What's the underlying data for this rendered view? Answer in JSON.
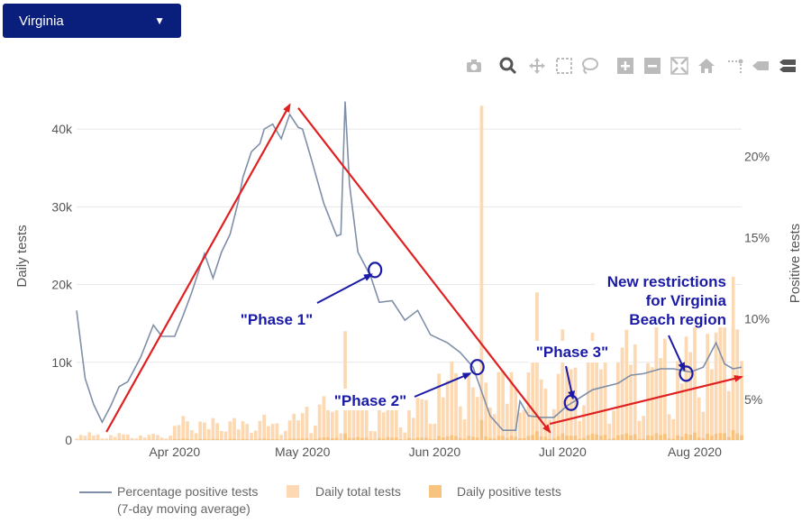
{
  "dropdown": {
    "selected": "Virginia",
    "caret": "▼"
  },
  "modebar": [
    "camera-icon",
    "zoom-icon",
    "pan-icon",
    "box-select-icon",
    "lasso-select-icon",
    "zoom-in-icon",
    "zoom-out-icon",
    "autoscale-icon",
    "reset-axes-icon",
    "spike-lines-icon",
    "hover-closest-icon",
    "hover-compare-icon"
  ],
  "legend": {
    "line_label_1": "Percentage positive tests",
    "line_label_2": "(7-day moving average)",
    "total_label": "Daily total tests",
    "positive_label": "Daily positive tests"
  },
  "colors": {
    "line": "#7f8fa8",
    "total_bar": "#fcd9b3",
    "positive_bar": "#f8c27f",
    "arrow": "#e02020",
    "annotation": "#1a1aa6"
  },
  "chart_data": {
    "type": "bar+line",
    "x_start": "2020-03-09",
    "x_end": "2020-08-12",
    "x_ticks": [
      {
        "date": "2020-04-01",
        "label": "Apr 2020"
      },
      {
        "date": "2020-05-01",
        "label": "May 2020"
      },
      {
        "date": "2020-06-01",
        "label": "Jun 2020"
      },
      {
        "date": "2020-07-01",
        "label": "Jul 2020"
      },
      {
        "date": "2020-08-01",
        "label": "Aug 2020"
      }
    ],
    "y_left": {
      "title": "Daily tests",
      "range": [
        0,
        45000
      ],
      "ticks": [
        0,
        10000,
        20000,
        30000,
        40000
      ],
      "tick_labels": [
        "0",
        "10k",
        "20k",
        "30k",
        "40k"
      ]
    },
    "y_right": {
      "title": "Positive tests",
      "range": [
        2.5,
        24.1
      ],
      "ticks": [
        5,
        10,
        15,
        20
      ],
      "tick_labels": [
        "5%",
        "10%",
        "15%",
        "20%"
      ]
    },
    "gridlines": "horizontal",
    "series": [
      {
        "name": "Percentage positive tests (7-day moving average)",
        "kind": "line",
        "axis": "right",
        "points": [
          [
            "2020-03-09",
            10.5
          ],
          [
            "2020-03-11",
            6.3
          ],
          [
            "2020-03-13",
            4.7
          ],
          [
            "2020-03-15",
            3.6
          ],
          [
            "2020-03-17",
            4.6
          ],
          [
            "2020-03-19",
            5.8
          ],
          [
            "2020-03-21",
            6.1
          ],
          [
            "2020-03-24",
            7.6
          ],
          [
            "2020-03-27",
            9.6
          ],
          [
            "2020-03-29",
            8.9
          ],
          [
            "2020-04-01",
            8.9
          ],
          [
            "2020-04-03",
            10.2
          ],
          [
            "2020-04-05",
            11.6
          ],
          [
            "2020-04-08",
            14.0
          ],
          [
            "2020-04-10",
            12.5
          ],
          [
            "2020-04-12",
            14.1
          ],
          [
            "2020-04-14",
            15.2
          ],
          [
            "2020-04-16",
            17.3
          ],
          [
            "2020-04-17",
            18.7
          ],
          [
            "2020-04-19",
            20.3
          ],
          [
            "2020-04-21",
            20.8
          ],
          [
            "2020-04-22",
            21.7
          ],
          [
            "2020-04-24",
            22.0
          ],
          [
            "2020-04-26",
            21.1
          ],
          [
            "2020-04-28",
            22.6
          ],
          [
            "2020-04-30",
            21.8
          ],
          [
            "2020-05-01",
            21.7
          ],
          [
            "2020-05-03",
            19.9
          ],
          [
            "2020-05-06",
            17.1
          ],
          [
            "2020-05-09",
            15.1
          ],
          [
            "2020-05-10",
            15.2
          ],
          [
            "2020-05-11",
            23.4
          ],
          [
            "2020-05-12",
            18.3
          ],
          [
            "2020-05-14",
            14.1
          ],
          [
            "2020-05-17",
            12.6
          ],
          [
            "2020-05-19",
            11.0
          ],
          [
            "2020-05-22",
            11.1
          ],
          [
            "2020-05-25",
            9.9
          ],
          [
            "2020-05-28",
            10.5
          ],
          [
            "2020-05-31",
            9.0
          ],
          [
            "2020-06-04",
            8.5
          ],
          [
            "2020-06-07",
            7.9
          ],
          [
            "2020-06-10",
            7.0
          ],
          [
            "2020-06-12",
            5.5
          ],
          [
            "2020-06-14",
            4.0
          ],
          [
            "2020-06-17",
            3.1
          ],
          [
            "2020-06-20",
            3.1
          ],
          [
            "2020-06-21",
            4.9
          ],
          [
            "2020-06-23",
            4.0
          ],
          [
            "2020-06-26",
            3.9
          ],
          [
            "2020-06-29",
            3.9
          ],
          [
            "2020-07-02",
            4.6
          ],
          [
            "2020-07-05",
            5.1
          ],
          [
            "2020-07-08",
            5.6
          ],
          [
            "2020-07-11",
            5.8
          ],
          [
            "2020-07-14",
            6.0
          ],
          [
            "2020-07-17",
            6.5
          ],
          [
            "2020-07-20",
            6.6
          ],
          [
            "2020-07-24",
            6.9
          ],
          [
            "2020-07-27",
            6.9
          ],
          [
            "2020-07-31",
            6.7
          ],
          [
            "2020-08-03",
            7.0
          ],
          [
            "2020-08-06",
            8.5
          ],
          [
            "2020-08-08",
            7.2
          ],
          [
            "2020-08-10",
            6.9
          ],
          [
            "2020-08-12",
            7.0
          ]
        ]
      },
      {
        "name": "Daily total tests",
        "kind": "bar",
        "axis": "left",
        "phases": [
          {
            "from": "2020-03-09",
            "to": "2020-03-31",
            "base": 600,
            "amp": 400
          },
          {
            "from": "2020-04-01",
            "to": "2020-04-30",
            "base": 2500,
            "amp": 1200
          },
          {
            "from": "2020-05-01",
            "to": "2020-05-31",
            "base": 4500,
            "amp": 2200
          },
          {
            "from": "2020-06-01",
            "to": "2020-06-30",
            "base": 8500,
            "amp": 4000
          },
          {
            "from": "2020-07-01",
            "to": "2020-07-31",
            "base": 10500,
            "amp": 4500
          },
          {
            "from": "2020-08-01",
            "to": "2020-08-12",
            "base": 13500,
            "amp": 5000
          }
        ],
        "spikes": [
          [
            "2020-06-12",
            43000
          ],
          [
            "2020-08-10",
            21000
          ],
          [
            "2020-05-11",
            14000
          ],
          [
            "2020-06-25",
            19000
          ]
        ]
      },
      {
        "name": "Daily positive tests",
        "kind": "bar",
        "axis": "left",
        "fraction_of_total": 0.06
      }
    ],
    "annotations": {
      "labels": [
        {
          "id": "phase1",
          "text": "\"Phase 1\""
        },
        {
          "id": "phase2",
          "text": "\"Phase 2\""
        },
        {
          "id": "phase3",
          "text": "\"Phase 3\""
        },
        {
          "id": "restrictions",
          "lines": [
            "New restrictions",
            "for Virginia",
            "Beach region"
          ]
        }
      ],
      "trend_arrows": [
        {
          "from": [
            "2020-03-16",
            3.0
          ],
          "to": [
            "2020-04-28",
            23.2
          ]
        },
        {
          "from": [
            "2020-04-30",
            23.0
          ],
          "to": [
            "2020-06-28",
            3.0
          ]
        },
        {
          "from": [
            "2020-06-28",
            3.5
          ],
          "to": [
            "2020-08-12",
            6.4
          ]
        }
      ],
      "markers": [
        {
          "date": "2020-05-18",
          "value": 13.0
        },
        {
          "date": "2020-06-11",
          "value": 7.0
        },
        {
          "date": "2020-07-03",
          "value": 4.8
        },
        {
          "date": "2020-07-30",
          "value": 6.6
        }
      ]
    }
  }
}
